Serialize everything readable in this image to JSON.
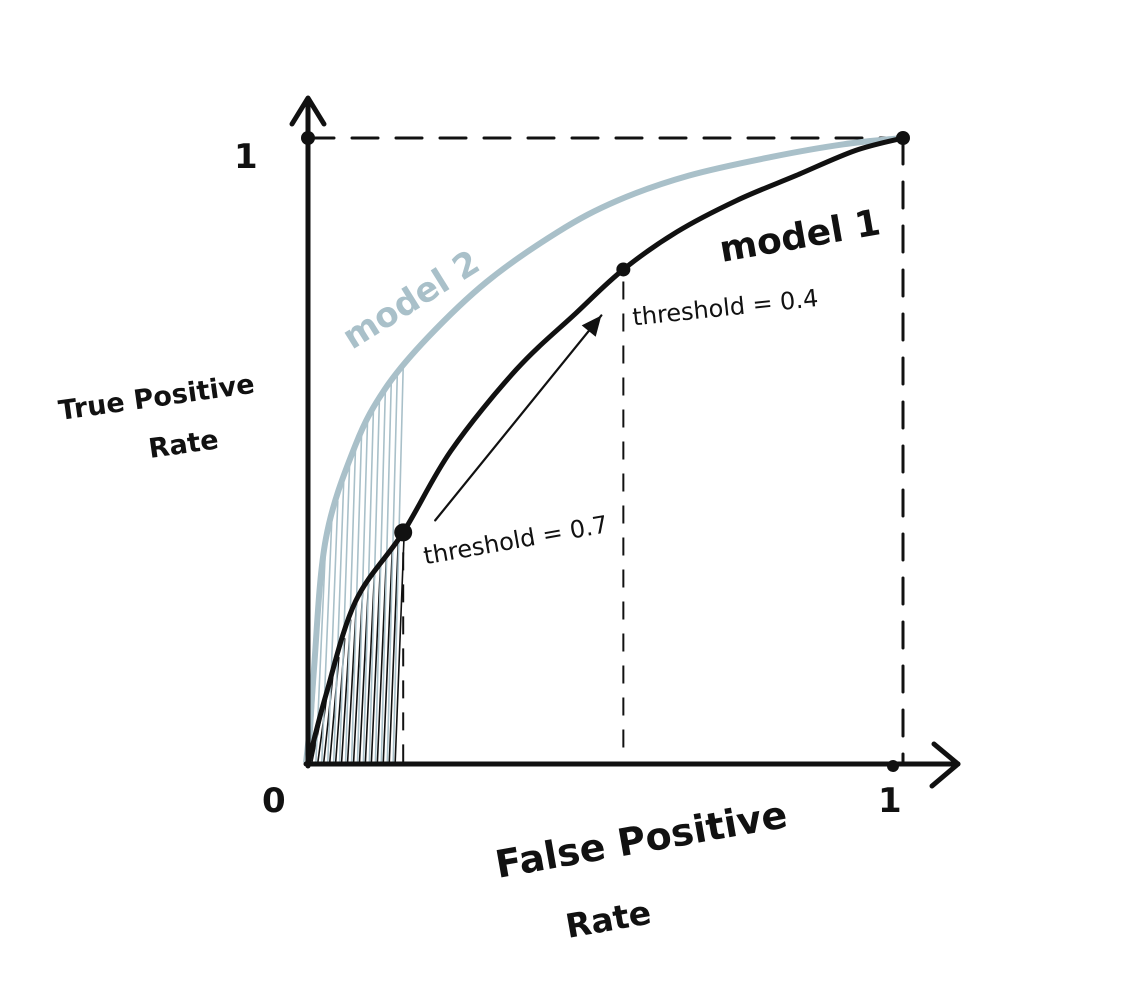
{
  "chart_data": {
    "type": "line",
    "xlabel_line1": "False Positive",
    "xlabel_line2": "Rate",
    "ylabel_line1": "True Positive",
    "ylabel_line2": "Rate",
    "tick_labels": {
      "origin": "0",
      "x_one": "1",
      "y_one": "1"
    },
    "xlim": [
      0,
      1
    ],
    "ylim": [
      0,
      1
    ],
    "series": [
      {
        "name": "model 1",
        "color": "#111111",
        "x": [
          0.0,
          0.03,
          0.08,
          0.16,
          0.24,
          0.35,
          0.45,
          0.53,
          0.62,
          0.72,
          0.82,
          0.92,
          1.0
        ],
        "y": [
          0.0,
          0.11,
          0.26,
          0.37,
          0.5,
          0.63,
          0.72,
          0.79,
          0.85,
          0.9,
          0.94,
          0.98,
          1.0
        ]
      },
      {
        "name": "model 2",
        "color": "#a9c0c9",
        "x": [
          0.0,
          0.01,
          0.03,
          0.08,
          0.13,
          0.2,
          0.3,
          0.42,
          0.52,
          0.64,
          0.78,
          0.9,
          1.0
        ],
        "y": [
          0.0,
          0.15,
          0.36,
          0.51,
          0.6,
          0.68,
          0.77,
          0.85,
          0.9,
          0.94,
          0.97,
          0.99,
          1.0
        ]
      }
    ],
    "thresholds": [
      {
        "label": "threshold = 0.7",
        "x": 0.16,
        "y": 0.37
      },
      {
        "label": "threshold = 0.4",
        "x": 0.53,
        "y": 0.79
      }
    ],
    "shaded_region_x_max": 0.16,
    "grid": false
  }
}
